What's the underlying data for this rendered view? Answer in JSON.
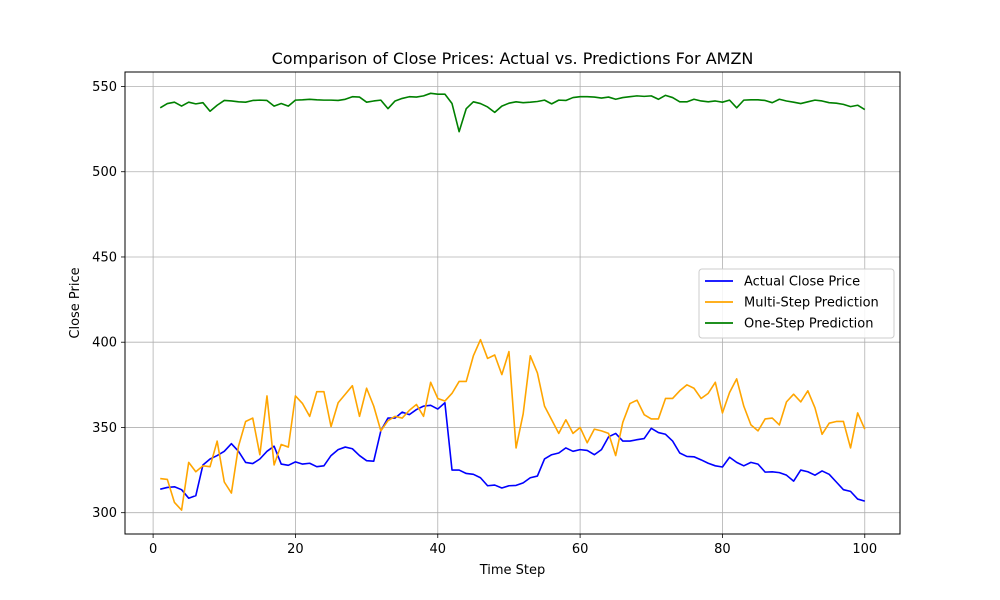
{
  "chart_data": {
    "type": "line",
    "title": "Comparison of Close Prices: Actual vs. Predictions For AMZN",
    "xlabel": "Time Step",
    "ylabel": "Close Price",
    "xlim": [
      -3.95,
      104.95
    ],
    "ylim": [
      287.5,
      558.5
    ],
    "xticks": [
      0,
      20,
      40,
      60,
      80,
      100
    ],
    "yticks": [
      300,
      350,
      400,
      450,
      500,
      550
    ],
    "grid": true,
    "legend_position": "center-right",
    "x": [
      1,
      2,
      3,
      4,
      5,
      6,
      7,
      8,
      9,
      10,
      11,
      12,
      13,
      14,
      15,
      16,
      17,
      18,
      19,
      20,
      21,
      22,
      23,
      24,
      25,
      26,
      27,
      28,
      29,
      30,
      31,
      32,
      33,
      34,
      35,
      36,
      37,
      38,
      39,
      40,
      41,
      42,
      43,
      44,
      45,
      46,
      47,
      48,
      49,
      50,
      51,
      52,
      53,
      54,
      55,
      56,
      57,
      58,
      59,
      60,
      61,
      62,
      63,
      64,
      65,
      66,
      67,
      68,
      69,
      70,
      71,
      72,
      73,
      74,
      75,
      76,
      77,
      78,
      79,
      80,
      81,
      82,
      83,
      84,
      85,
      86,
      87,
      88,
      89,
      90,
      91,
      92,
      93,
      94,
      95,
      96,
      97,
      98,
      99,
      100
    ],
    "series": [
      {
        "name": "Actual Close Price",
        "color": "#0000ff",
        "values": [
          313.8,
          314.8,
          315.2,
          313.5,
          308.5,
          310.0,
          328.0,
          331.5,
          333.5,
          336.0,
          340.5,
          336.0,
          329.5,
          328.8,
          331.5,
          336.0,
          339.0,
          328.5,
          327.8,
          329.8,
          328.5,
          329.0,
          327.0,
          327.5,
          333.5,
          337.0,
          338.5,
          337.5,
          333.5,
          330.5,
          330.2,
          348.0,
          355.5,
          355.5,
          359.0,
          357.5,
          360.5,
          362.5,
          363.0,
          360.8,
          364.5,
          325.0,
          325.0,
          323.0,
          322.5,
          320.5,
          315.8,
          316.2,
          314.5,
          315.8,
          316.0,
          317.5,
          320.5,
          321.5,
          331.5,
          334.0,
          335.0,
          338.0,
          336.0,
          337.0,
          336.5,
          334.0,
          337.0,
          344.5,
          346.5,
          342.0,
          342.0,
          342.8,
          343.5,
          349.5,
          347.0,
          346.0,
          342.0,
          335.0,
          333.0,
          332.8,
          331.0,
          329.0,
          327.5,
          326.8,
          332.5,
          329.5,
          327.5,
          329.5,
          328.5,
          323.8,
          324.0,
          323.5,
          322.0,
          318.5,
          325.0,
          324.0,
          322.0,
          324.5,
          322.5,
          318.0,
          313.5,
          312.5,
          308.0,
          306.8
        ]
      },
      {
        "name": "Multi-Step Prediction",
        "color": "#ffa500",
        "values": [
          320.0,
          319.5,
          306.0,
          301.5,
          329.5,
          324.0,
          327.5,
          327.0,
          342.0,
          318.0,
          311.5,
          339.0,
          353.5,
          355.5,
          334.0,
          368.5,
          328.0,
          340.0,
          338.5,
          368.5,
          364.0,
          356.5,
          371.0,
          371.0,
          350.5,
          364.5,
          369.5,
          374.5,
          356.5,
          373.0,
          362.5,
          348.0,
          354.0,
          356.5,
          355.5,
          360.0,
          363.5,
          356.5,
          376.5,
          367.0,
          365.5,
          370.0,
          377.0,
          377.0,
          392.0,
          401.5,
          390.5,
          392.5,
          381.0,
          394.5,
          338.0,
          358.0,
          392.0,
          382.0,
          362.5,
          354.5,
          346.5,
          354.5,
          346.5,
          350.0,
          341.0,
          349.0,
          348.0,
          346.5,
          333.5,
          353.0,
          364.0,
          366.0,
          357.5,
          355.0,
          355.0,
          367.0,
          367.0,
          371.5,
          375.0,
          373.0,
          367.0,
          370.0,
          376.5,
          358.5,
          370.5,
          378.5,
          362.5,
          351.5,
          348.0,
          355.0,
          355.5,
          351.5,
          365.0,
          369.5,
          365.0,
          371.5,
          361.5,
          346.0,
          352.5,
          353.5,
          353.5,
          338.0,
          358.5,
          349.0
        ]
      },
      {
        "name": "One-Step Prediction",
        "color": "#008000",
        "values": [
          537.5,
          540.0,
          540.8,
          538.5,
          540.8,
          539.8,
          540.5,
          535.5,
          539.0,
          541.8,
          541.5,
          541.0,
          540.8,
          541.8,
          542.0,
          541.8,
          538.5,
          540.0,
          538.5,
          542.0,
          542.2,
          542.5,
          542.2,
          542.0,
          542.0,
          541.8,
          542.5,
          544.0,
          543.8,
          540.8,
          541.5,
          542.0,
          537.0,
          541.5,
          543.0,
          544.0,
          543.8,
          544.5,
          546.0,
          545.5,
          545.5,
          540.0,
          523.5,
          537.0,
          541.0,
          540.0,
          538.0,
          534.8,
          538.5,
          540.2,
          541.0,
          540.5,
          540.8,
          541.2,
          542.0,
          539.8,
          542.0,
          541.8,
          543.5,
          544.0,
          544.0,
          543.8,
          543.2,
          543.8,
          542.5,
          543.5,
          544.0,
          544.5,
          544.2,
          544.5,
          542.5,
          544.8,
          543.5,
          541.0,
          541.0,
          542.5,
          541.5,
          541.0,
          541.5,
          540.8,
          542.0,
          537.5,
          542.0,
          542.2,
          542.2,
          541.8,
          540.5,
          542.5,
          541.5,
          540.8,
          540.0,
          541.0,
          542.0,
          541.5,
          540.5,
          540.2,
          539.5,
          538.2,
          539.0,
          536.5
        ]
      }
    ]
  }
}
